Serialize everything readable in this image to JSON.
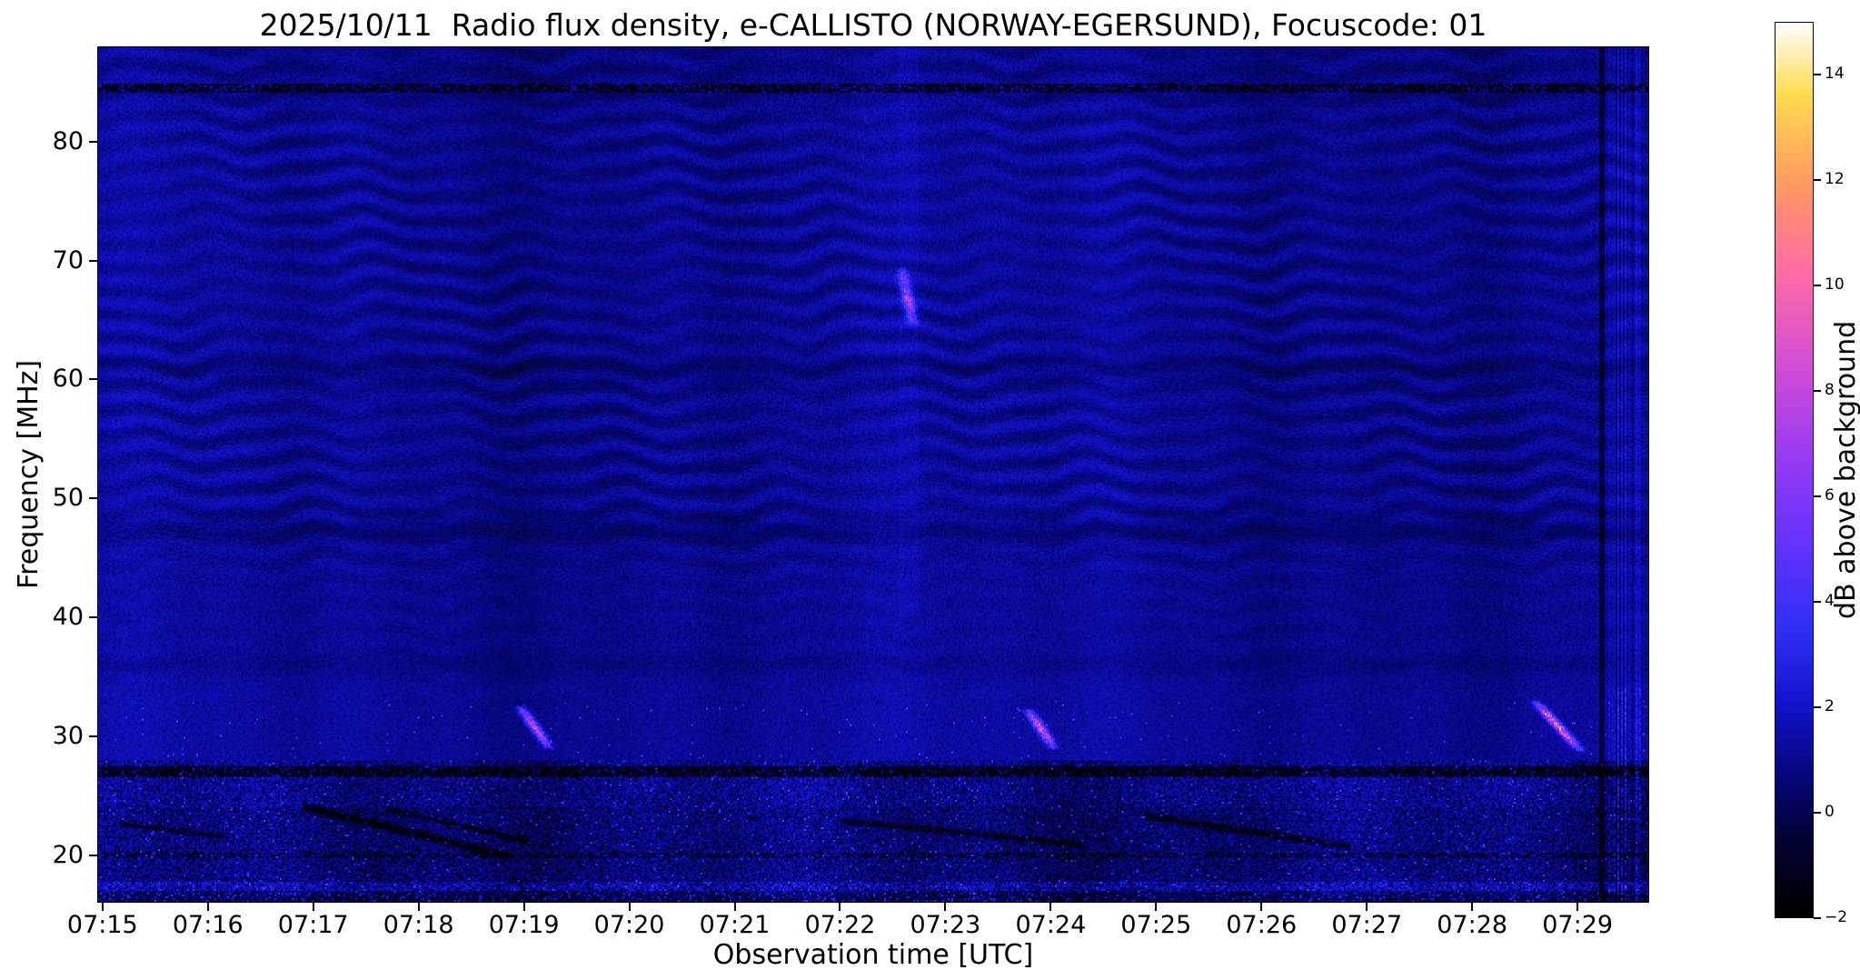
{
  "chart_data": {
    "type": "heatmap",
    "title": "2025/10/11  Radio flux density, e-CALLISTO (NORWAY-EGERSUND), Focuscode: 01",
    "xlabel": "Observation time [UTC]",
    "ylabel": "Frequency [MHz]",
    "x_tick_labels": [
      "07:15",
      "07:16",
      "07:17",
      "07:18",
      "07:19",
      "07:20",
      "07:21",
      "07:22",
      "07:23",
      "07:24",
      "07:25",
      "07:26",
      "07:27",
      "07:28",
      "07:29"
    ],
    "x_tick_minutes": [
      0,
      1,
      2,
      3,
      4,
      5,
      6,
      7,
      8,
      9,
      10,
      11,
      12,
      13,
      14
    ],
    "x_range_min": [
      -0.05,
      14.68
    ],
    "y_ticks": [
      80,
      70,
      60,
      50,
      40,
      30,
      20
    ],
    "ylim_mhz": [
      16,
      88
    ],
    "grid": false,
    "colorbar": {
      "label": "dB above background",
      "ticks": [
        14,
        12,
        10,
        8,
        6,
        4,
        2,
        0,
        -2
      ],
      "tick_labels": [
        "14",
        "12",
        "10",
        "8",
        "6",
        "4",
        "2",
        "0",
        "−2"
      ],
      "range_db": [
        -2,
        15
      ],
      "colormap": "gnuplot2-like (black-blue-magenta-orange-white)",
      "stops": [
        [
          0,
          "#000000"
        ],
        [
          0.08,
          "#03032e"
        ],
        [
          0.16,
          "#07077e"
        ],
        [
          0.24,
          "#1414cf"
        ],
        [
          0.32,
          "#3030f5"
        ],
        [
          0.42,
          "#6633ff"
        ],
        [
          0.52,
          "#9b3cf2"
        ],
        [
          0.62,
          "#d44fd4"
        ],
        [
          0.72,
          "#ff6ca6"
        ],
        [
          0.82,
          "#ff9a62"
        ],
        [
          0.92,
          "#ffdc4e"
        ],
        [
          1,
          "#ffffff"
        ]
      ]
    },
    "background": {
      "base_db": 1.05,
      "noise_sd_db": 0.45
    },
    "features": {
      "ripples": {
        "freq_range_mhz": [
          33,
          88
        ],
        "spacing_mhz": 2.1,
        "amplitude_db": 0.55,
        "description": "undulating quasi-horizontal interference fringes strongest between 48 and 82 MHz"
      },
      "noise_band": {
        "freq_range_mhz": [
          16,
          28
        ],
        "description": "speckled terrestrial interference band with dark dashed lines near 27 and 20 MHz and bright speckle near 17 MHz"
      },
      "dark_dashed_lines_mhz": [
        84.6,
        27.0,
        19.9
      ],
      "dark_bands_mhz": [
        60.8,
        47.3,
        35.8
      ],
      "rfi_sweeps": [
        {
          "t0_min": 1.9,
          "f0_mhz": 24.0,
          "t1_min": 3.85,
          "f1_mhz": 19.8,
          "width_mhz": 0.55,
          "depth_db": -2.4
        },
        {
          "t0_min": 2.7,
          "f0_mhz": 23.8,
          "t1_min": 4.05,
          "f1_mhz": 21.0,
          "width_mhz": 0.4,
          "depth_db": -1.8
        },
        {
          "t0_min": 0.15,
          "f0_mhz": 22.6,
          "t1_min": 1.2,
          "f1_mhz": 21.4,
          "width_mhz": 0.35,
          "depth_db": -1.5
        },
        {
          "t0_min": 7.0,
          "f0_mhz": 22.8,
          "t1_min": 9.3,
          "f1_mhz": 20.8,
          "width_mhz": 0.45,
          "depth_db": -1.8
        },
        {
          "t0_min": 9.9,
          "f0_mhz": 23.2,
          "t1_min": 11.85,
          "f1_mhz": 20.6,
          "width_mhz": 0.5,
          "depth_db": -2.0
        }
      ],
      "bursts": [
        {
          "t_start_min": 3.95,
          "f_top_mhz": 32.6,
          "f_bot_mhz": 28.8,
          "duration_min": 0.3,
          "peak_db": 9.5,
          "time_utc": "07:18:57",
          "note": "drifting pink burst near 30 MHz"
        },
        {
          "t_start_min": 7.58,
          "f_top_mhz": 69.5,
          "f_bot_mhz": 64.5,
          "duration_min": 0.12,
          "peak_db": 7.5,
          "time_utc": "07:22:35",
          "note": "short dotted streak 65-70 MHz"
        },
        {
          "t_start_min": 8.78,
          "f_top_mhz": 32.3,
          "f_bot_mhz": 28.8,
          "duration_min": 0.26,
          "peak_db": 9.5,
          "time_utc": "07:23:47",
          "note": "drifting pink burst near 30 MHz"
        },
        {
          "t_start_min": 13.6,
          "f_top_mhz": 33.0,
          "f_bot_mhz": 28.6,
          "duration_min": 0.45,
          "peak_db": 11.5,
          "time_utc": "07:28:36",
          "note": "brightest burst, orange core, near 30 MHz"
        }
      ],
      "right_edge_artifacts": {
        "t_after_min": 14.3,
        "description": "vertical bright/dark column striping at far right edge"
      }
    }
  }
}
